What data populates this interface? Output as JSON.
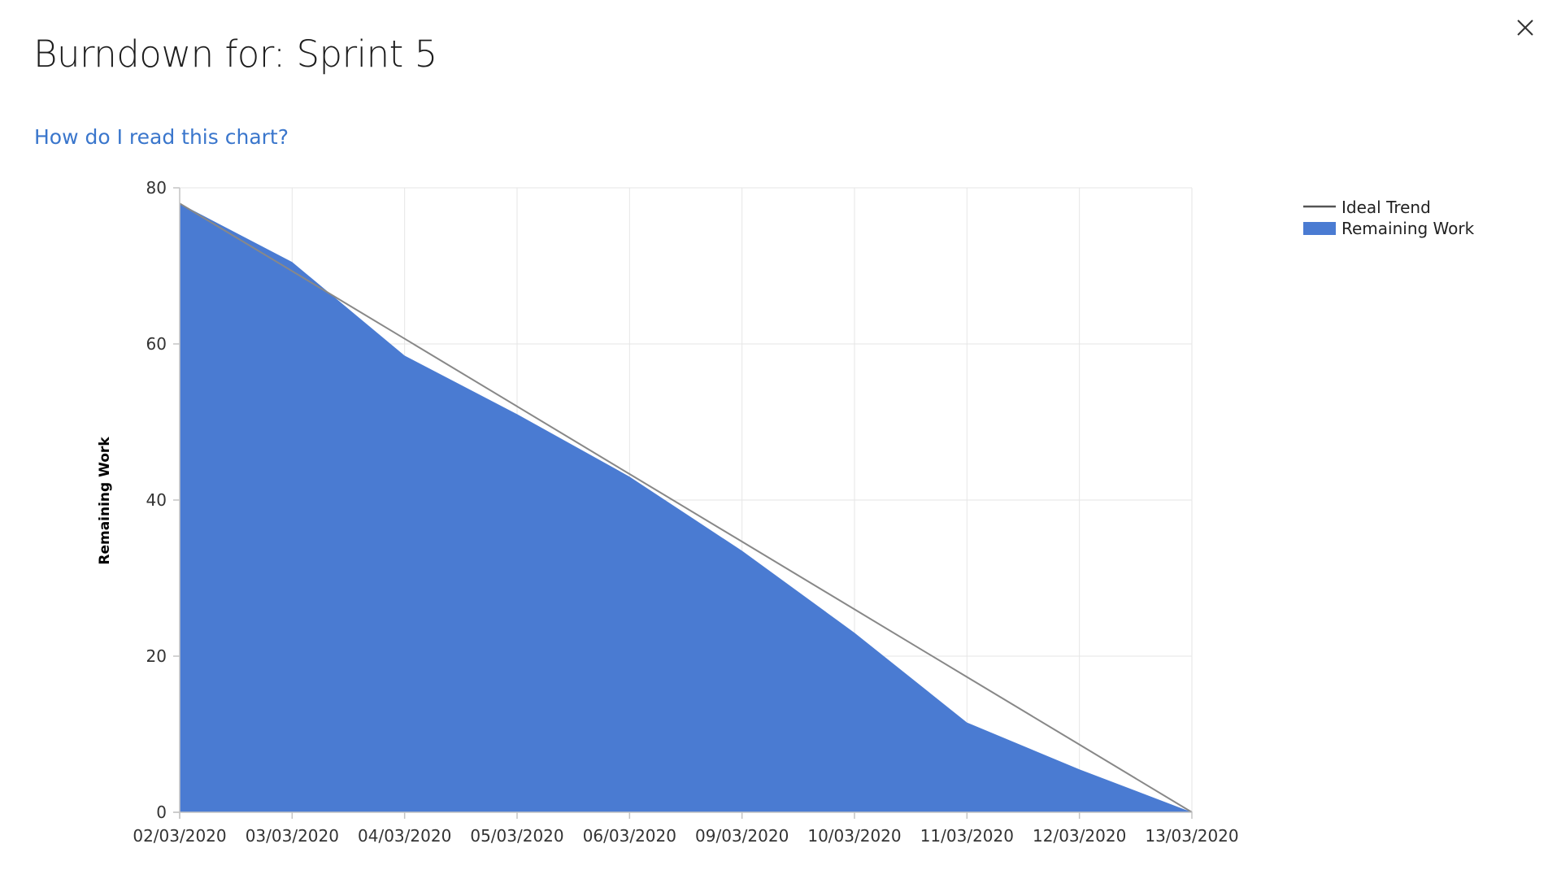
{
  "dialog": {
    "title": "Burndown for: Sprint 5",
    "help_link": "How do I read this chart?",
    "close_icon": "close-icon"
  },
  "colors": {
    "remaining_fill": "#4a7bd2",
    "ideal_line": "#888888",
    "legend_line": "#555555",
    "grid": "#e6e6e6",
    "axis": "#c4c4c4",
    "link": "#3a76cc"
  },
  "chart_data": {
    "type": "area",
    "title": "",
    "xlabel": "",
    "ylabel": "Remaining Work",
    "ylim": [
      0,
      80
    ],
    "yticks": [
      0,
      20,
      40,
      60,
      80
    ],
    "grid": true,
    "legend_position": "top-right",
    "categories": [
      "02/03/2020",
      "03/03/2020",
      "04/03/2020",
      "05/03/2020",
      "06/03/2020",
      "09/03/2020",
      "10/03/2020",
      "11/03/2020",
      "12/03/2020",
      "13/03/2020"
    ],
    "series": [
      {
        "name": "Ideal Trend",
        "kind": "line",
        "values": [
          78,
          69.33,
          60.67,
          52,
          43.33,
          34.67,
          26,
          17.33,
          8.67,
          0
        ]
      },
      {
        "name": "Remaining Work",
        "kind": "area",
        "values": [
          78,
          70.5,
          58.5,
          51,
          43,
          33.5,
          23,
          11.5,
          5.5,
          0
        ]
      }
    ]
  }
}
